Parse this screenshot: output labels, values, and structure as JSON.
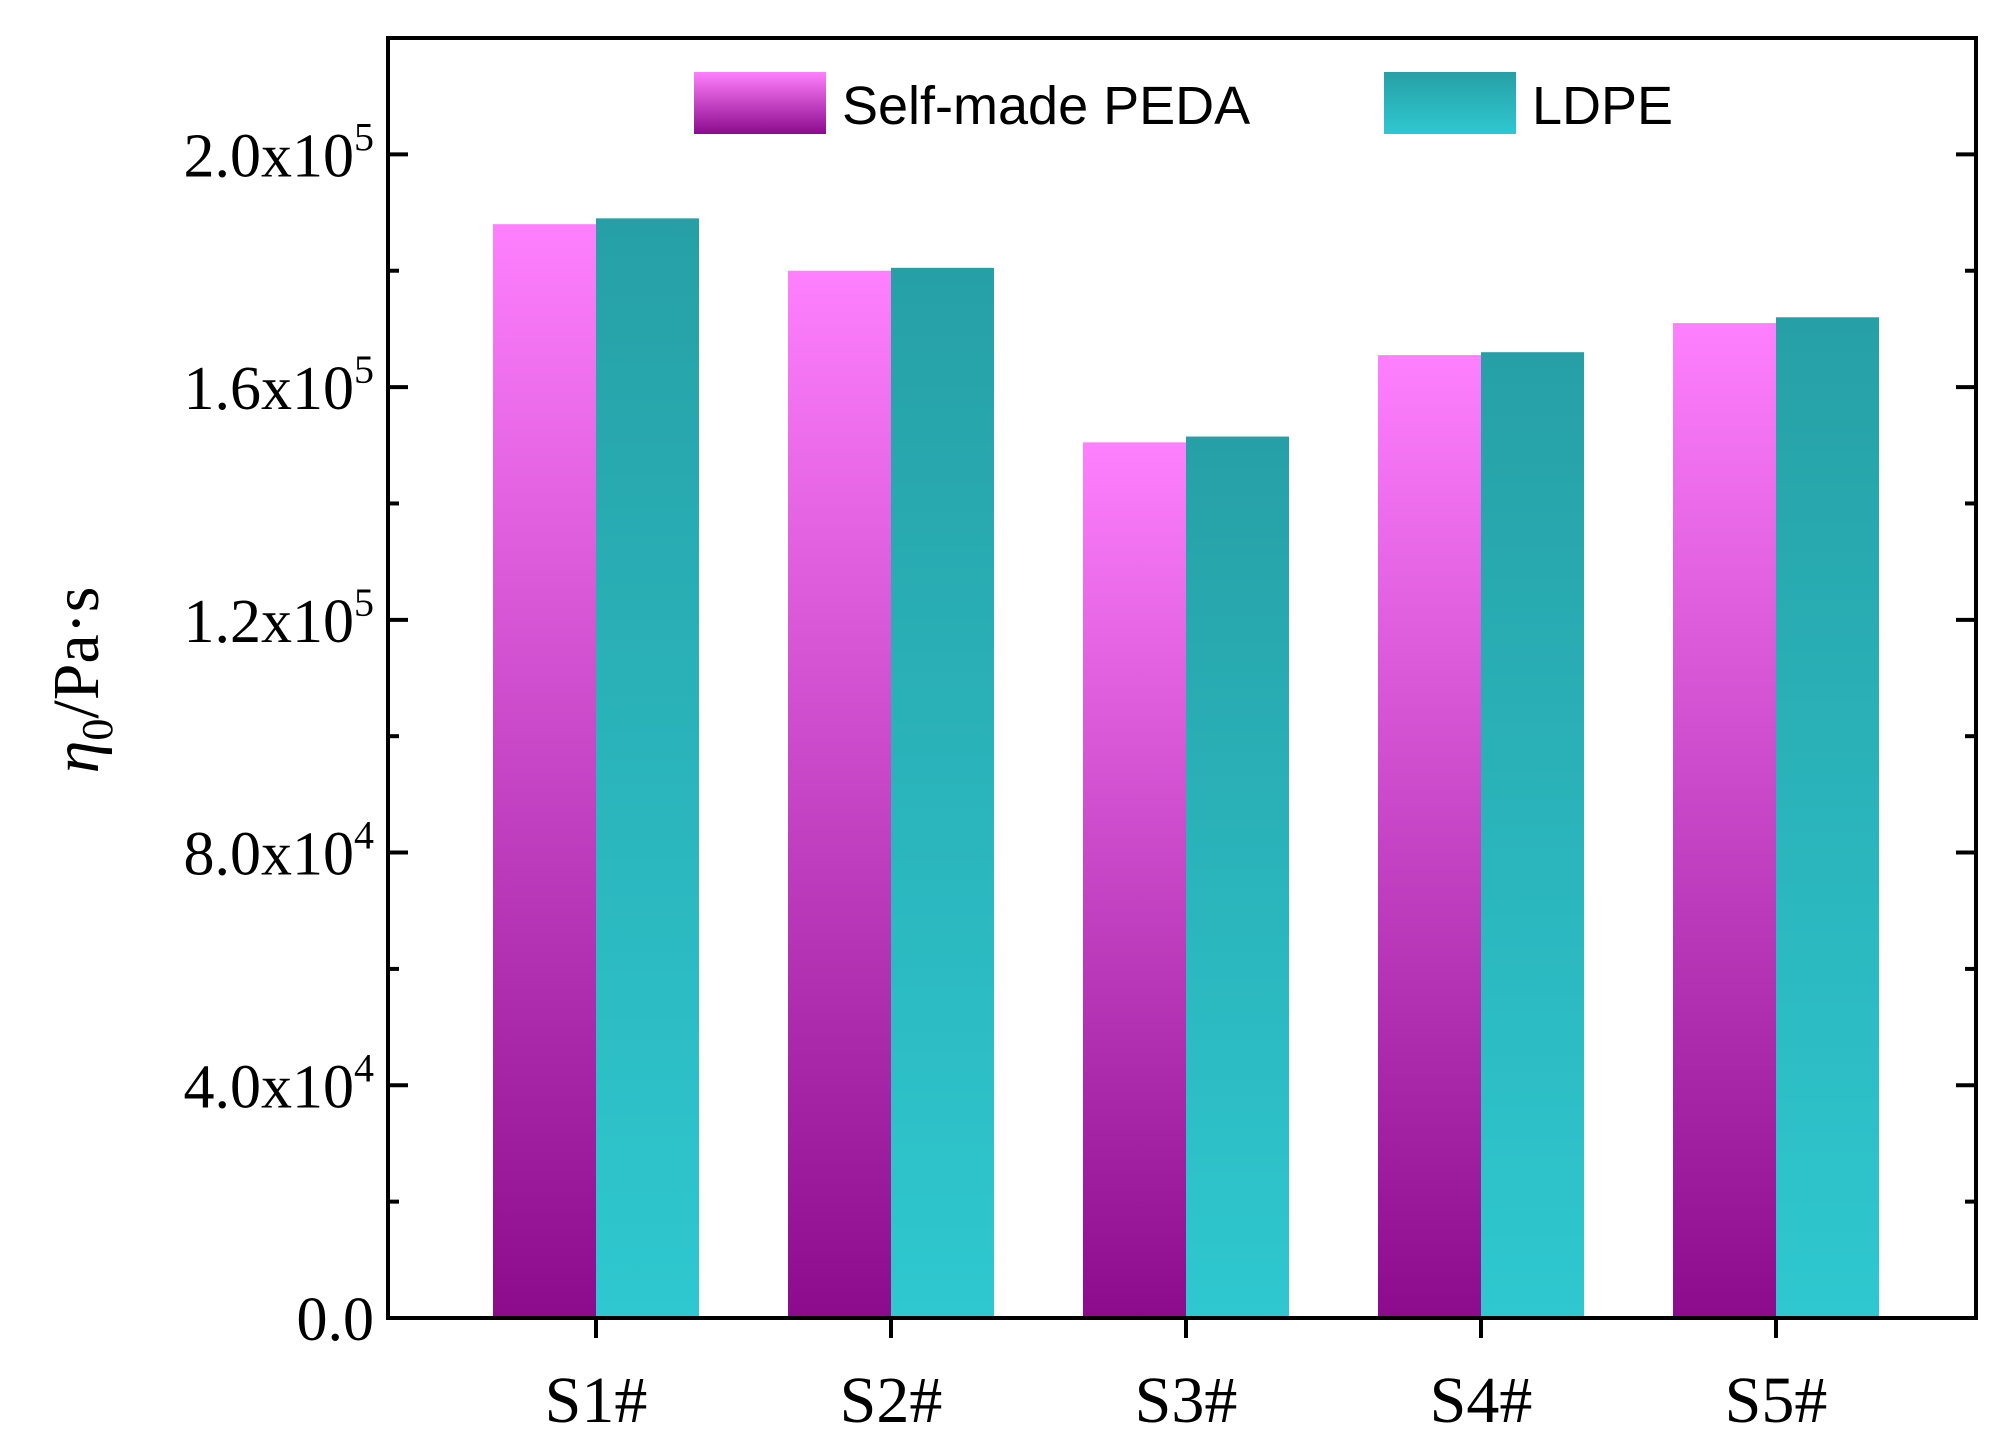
{
  "chart_data": {
    "type": "bar",
    "title": "",
    "xlabel": "",
    "ylabel": {
      "symbol": "η",
      "subscript": "0",
      "unit": "/Pa·s"
    },
    "categories": [
      "S1#",
      "S2#",
      "S3#",
      "S4#",
      "S5#"
    ],
    "series": [
      {
        "name": "Self-made PEDA",
        "values": [
          188000,
          180000,
          150500,
          165500,
          171000
        ],
        "gradient_top": "#ff80ff",
        "gradient_bottom": "#8c0a8c"
      },
      {
        "name": "LDPE",
        "values": [
          189000,
          180500,
          151500,
          166000,
          172000
        ],
        "gradient_top": "#26a0a6",
        "gradient_bottom": "#2fc8d0"
      }
    ],
    "ylim": [
      0,
      220000
    ],
    "yticks": [
      {
        "value": 0,
        "label": "0.0",
        "exp": ""
      },
      {
        "value": 40000,
        "label": "4.0x10",
        "exp": "4"
      },
      {
        "value": 80000,
        "label": "8.0x10",
        "exp": "4"
      },
      {
        "value": 120000,
        "label": "1.2x10",
        "exp": "5"
      },
      {
        "value": 160000,
        "label": "1.6x10",
        "exp": "5"
      },
      {
        "value": 200000,
        "label": "2.0x10",
        "exp": "5"
      }
    ],
    "minor_tick_step": 20000,
    "legend_position": "top-center",
    "grid": false
  }
}
